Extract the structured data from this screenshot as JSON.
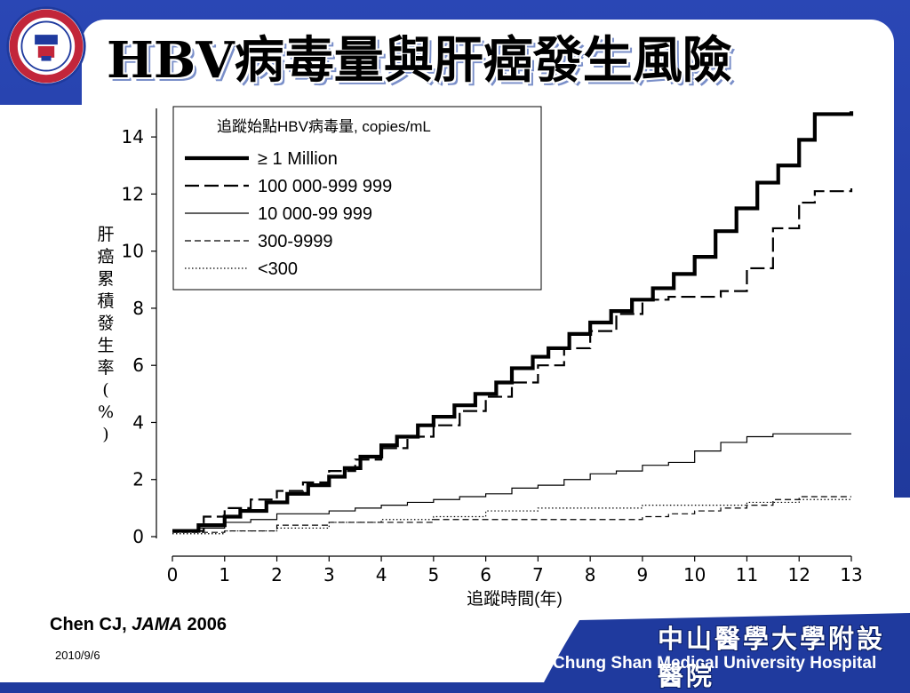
{
  "slide": {
    "title": "HBV病毒量與肝癌發生風險",
    "citation_author": "Chen CJ, ",
    "citation_journal": "JAMA",
    "citation_year": " 2006",
    "date": "2010/9/6",
    "hospital_zh": "中山醫學大學附設醫院",
    "hospital_en": "Chung Shan Medical University Hospital",
    "colors": {
      "background": "#1f3a9e",
      "panel": "#ffffff",
      "text": "#000000"
    },
    "logo_icon": "university-seal-icon"
  },
  "chart_data": {
    "type": "line",
    "title": "",
    "xlabel": "追蹤時間(年)",
    "ylabel": "肝癌累積發生率(%)",
    "xlim": [
      0,
      13
    ],
    "ylim": [
      0,
      15
    ],
    "xticks": [
      0,
      1,
      2,
      3,
      4,
      5,
      6,
      7,
      8,
      9,
      10,
      11,
      12,
      13
    ],
    "yticks": [
      0,
      2,
      4,
      6,
      8,
      10,
      12,
      14
    ],
    "legend_title": "追蹤始點HBV病毒量, copies/mL",
    "legend_placement": "top-left",
    "grid": false,
    "series": [
      {
        "name": "≥ 1 Million",
        "style": "solid-thick",
        "x": [
          0,
          0.5,
          1,
          1.3,
          1.8,
          2.2,
          2.6,
          3.0,
          3.3,
          3.6,
          4.0,
          4.3,
          4.7,
          5.0,
          5.4,
          5.8,
          6.2,
          6.5,
          6.9,
          7.2,
          7.6,
          8.0,
          8.4,
          8.8,
          9.2,
          9.6,
          10.0,
          10.4,
          10.8,
          11.2,
          11.6,
          12.0,
          12.3,
          13.0
        ],
        "values": [
          0.2,
          0.4,
          0.7,
          0.9,
          1.2,
          1.5,
          1.8,
          2.1,
          2.4,
          2.8,
          3.2,
          3.5,
          3.9,
          4.2,
          4.6,
          5.0,
          5.4,
          5.9,
          6.3,
          6.6,
          7.1,
          7.5,
          7.9,
          8.3,
          8.7,
          9.2,
          9.8,
          10.7,
          11.5,
          12.4,
          13.0,
          13.9,
          14.8,
          14.9
        ]
      },
      {
        "name": "100 000-999 999",
        "style": "long-dash",
        "x": [
          0,
          0.6,
          1,
          1.5,
          2,
          2.5,
          3,
          3.5,
          4,
          4.5,
          5,
          5.5,
          6,
          6.5,
          7,
          7.5,
          8,
          8.5,
          9,
          9.5,
          10,
          10.5,
          11,
          11.5,
          12,
          12.3,
          13
        ],
        "values": [
          0.2,
          0.7,
          1.0,
          1.3,
          1.6,
          1.9,
          2.3,
          2.7,
          3.1,
          3.5,
          3.9,
          4.4,
          4.9,
          5.4,
          6.0,
          6.6,
          7.2,
          7.8,
          8.3,
          8.4,
          8.4,
          8.6,
          9.4,
          10.8,
          11.7,
          12.1,
          12.2
        ]
      },
      {
        "name": "10 000-99 999",
        "style": "solid-thin",
        "x": [
          0,
          0.5,
          1,
          1.5,
          2,
          2.5,
          3,
          3.5,
          4,
          4.5,
          5,
          5.5,
          6,
          6.5,
          7,
          7.5,
          8,
          8.5,
          9,
          9.5,
          10,
          10.5,
          11,
          11.5,
          12,
          13
        ],
        "values": [
          0.2,
          0.3,
          0.5,
          0.6,
          0.8,
          0.8,
          0.9,
          1.0,
          1.1,
          1.2,
          1.3,
          1.4,
          1.5,
          1.7,
          1.8,
          2.0,
          2.2,
          2.3,
          2.5,
          2.6,
          3.0,
          3.3,
          3.5,
          3.6,
          3.6,
          3.6
        ]
      },
      {
        "name": "300-9999",
        "style": "short-dash",
        "x": [
          0,
          1,
          2,
          3,
          4,
          5,
          6,
          7,
          8,
          9,
          9.5,
          10,
          10.5,
          11,
          11.5,
          12,
          13
        ],
        "values": [
          0.15,
          0.2,
          0.4,
          0.5,
          0.5,
          0.6,
          0.6,
          0.6,
          0.6,
          0.7,
          0.8,
          0.9,
          1.0,
          1.1,
          1.3,
          1.4,
          1.4
        ]
      },
      {
        "name": "<300",
        "style": "dotted",
        "x": [
          0,
          1,
          2,
          3,
          4,
          5,
          6,
          7,
          8,
          9,
          10,
          11,
          12,
          13
        ],
        "values": [
          0.1,
          0.2,
          0.3,
          0.5,
          0.6,
          0.7,
          0.9,
          1.0,
          1.0,
          1.1,
          1.1,
          1.2,
          1.3,
          1.3
        ]
      }
    ]
  }
}
